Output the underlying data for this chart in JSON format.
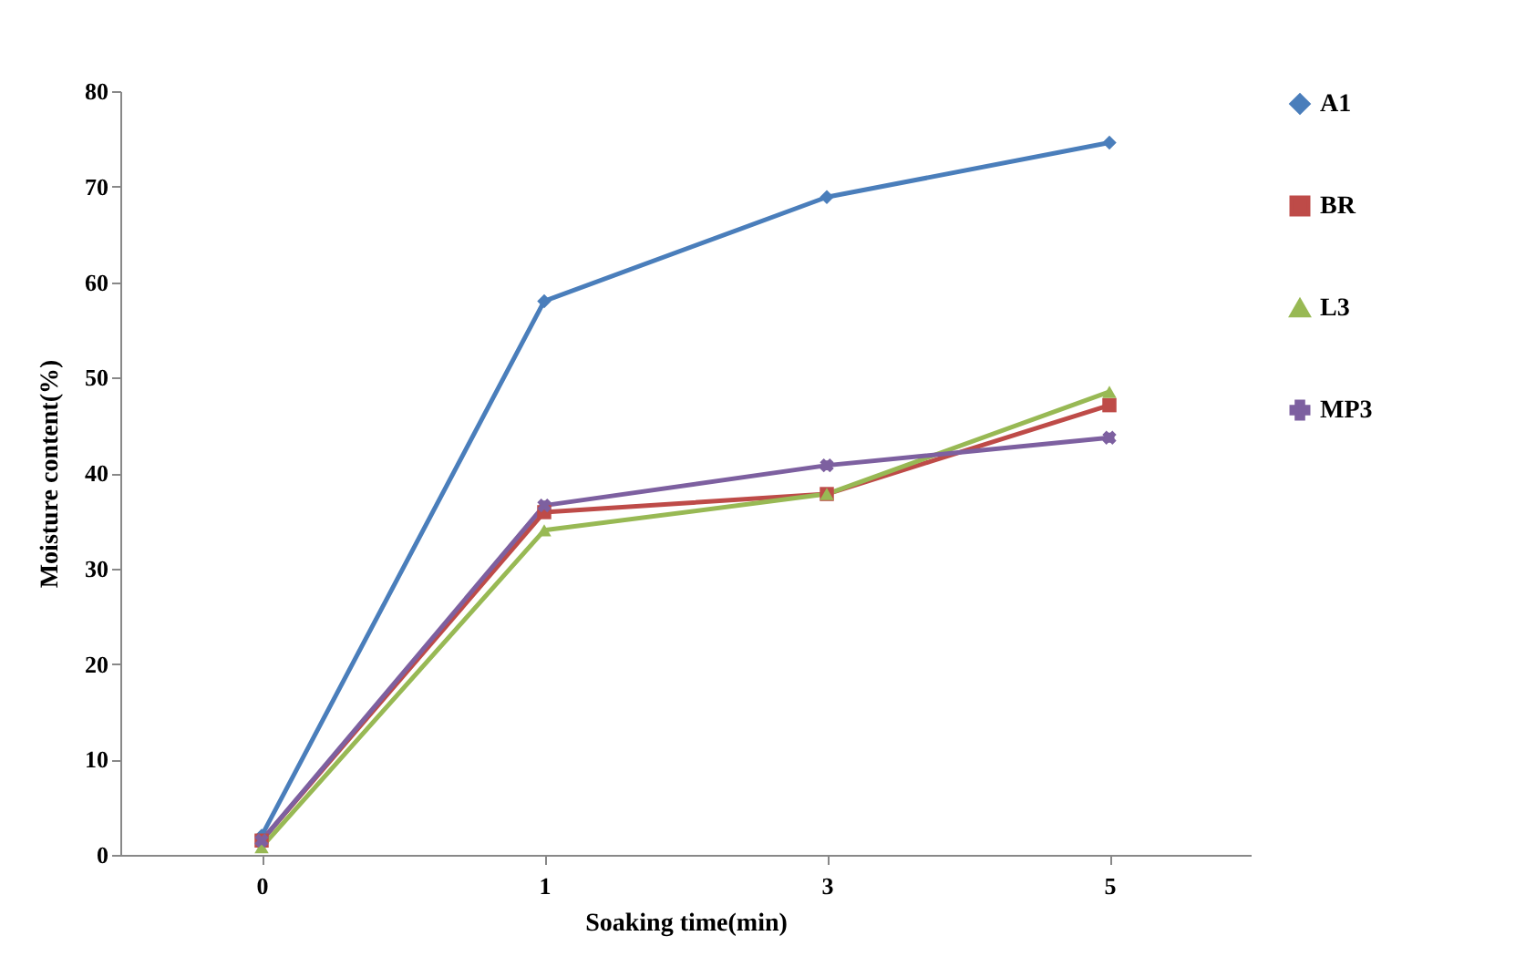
{
  "chart_data": {
    "type": "line",
    "xlabel": "Soaking time(min)",
    "ylabel": "Moisture content(%)",
    "categories": [
      "0",
      "1",
      "3",
      "5"
    ],
    "ylim": [
      0,
      80
    ],
    "yticks": [
      0,
      10,
      20,
      30,
      40,
      50,
      60,
      70,
      80
    ],
    "grid": false,
    "legend": "right",
    "line_style": "solid",
    "series": [
      {
        "name": "A1",
        "color": "#4a7ebb",
        "marker": "diamond",
        "values": [
          2,
          58,
          68.9,
          74.6
        ]
      },
      {
        "name": "BR",
        "color": "#be4b48",
        "marker": "square",
        "values": [
          1.5,
          35.9,
          37.8,
          47.1
        ]
      },
      {
        "name": "L3",
        "color": "#98b954",
        "marker": "triangle",
        "values": [
          0.8,
          34,
          37.8,
          48.5
        ]
      },
      {
        "name": "MP3",
        "color": "#7d60a0",
        "marker": "cross",
        "values": [
          1.5,
          36.6,
          40.8,
          43.7
        ]
      }
    ]
  }
}
